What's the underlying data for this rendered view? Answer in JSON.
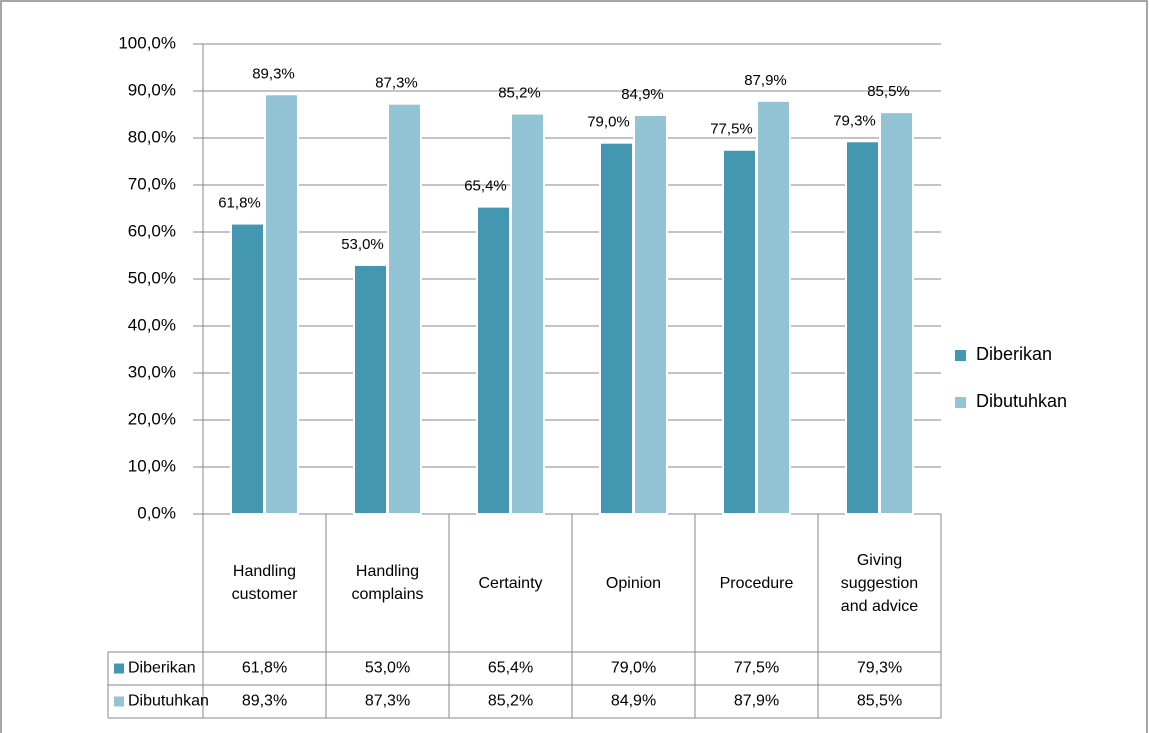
{
  "chart_data": {
    "type": "bar",
    "categories": [
      "Handling customer",
      "Handling complains",
      "Certainty",
      "Opinion",
      "Procedure",
      "Giving suggestion and advice"
    ],
    "series": [
      {
        "name": "Diberikan",
        "color": "#4397b1",
        "values": [
          61.8,
          53.0,
          65.4,
          79.0,
          77.5,
          79.3
        ],
        "value_labels": [
          "61,8%",
          "53,0%",
          "65,4%",
          "79,0%",
          "77,5%",
          "79,3%"
        ]
      },
      {
        "name": "Dibutuhkan",
        "color": "#93c4d6",
        "values": [
          89.3,
          87.3,
          85.2,
          84.9,
          87.9,
          85.5
        ],
        "value_labels": [
          "89,3%",
          "87,3%",
          "85,2%",
          "84,9%",
          "87,9%",
          "85,5%"
        ]
      }
    ],
    "ylim": [
      0,
      100
    ],
    "yticks": [
      {
        "value": 0,
        "label": "0,0%"
      },
      {
        "value": 10,
        "label": "10,0%"
      },
      {
        "value": 20,
        "label": "20,0%"
      },
      {
        "value": 30,
        "label": "30,0%"
      },
      {
        "value": 40,
        "label": "40,0%"
      },
      {
        "value": 50,
        "label": "50,0%"
      },
      {
        "value": 60,
        "label": "60,0%"
      },
      {
        "value": 70,
        "label": "70,0%"
      },
      {
        "value": 80,
        "label": "80,0%"
      },
      {
        "value": 90,
        "label": "90,0%"
      },
      {
        "value": 100,
        "label": "100,0%"
      }
    ],
    "grid": true,
    "legend": "right",
    "data_table": true
  }
}
